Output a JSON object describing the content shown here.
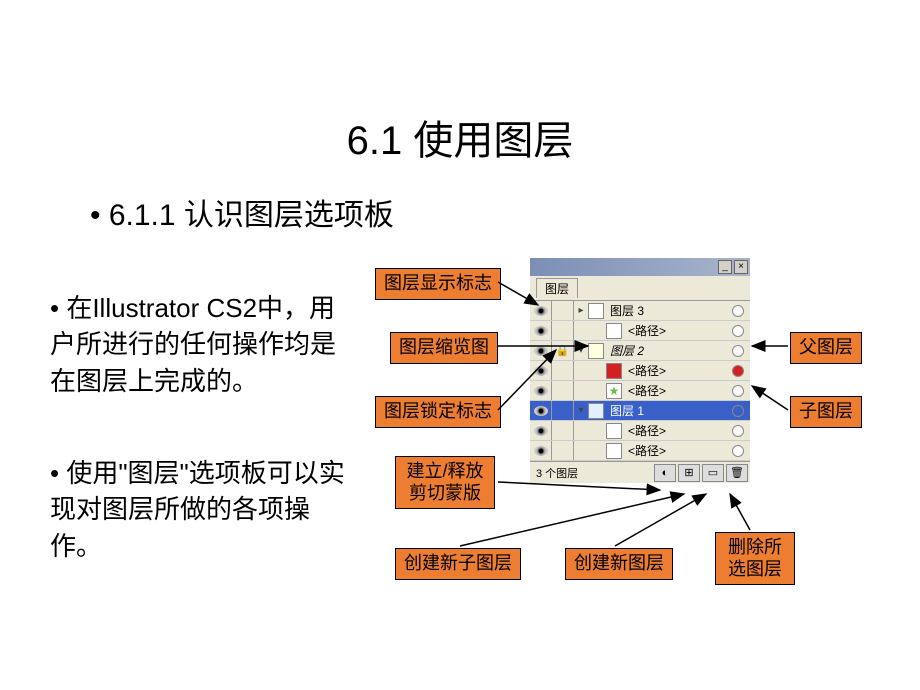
{
  "title": "6.1  使用图层",
  "subtitle": "• 6.1.1   认识图层选项板",
  "body1": "• 在Illustrator CS2中，用户所进行的任何操作均是在图层上完成的。",
  "body2": "• 使用\"图层\"选项板可以实现对图层所做的各项操作。",
  "panel": {
    "tab": "图层",
    "footer_count": "3 个图层",
    "rows": [
      {
        "name": "图层 3",
        "thumb_color": "#ffffff",
        "indent": 0,
        "selected": false,
        "target_fill": "#ffffff",
        "expand": "▸"
      },
      {
        "name": "<路径>",
        "thumb_color": "#ffffff",
        "indent": 1,
        "selected": false,
        "target_fill": "#ffffff",
        "expand": ""
      },
      {
        "name": "图层 2",
        "thumb_color": "#ffffe0",
        "indent": 0,
        "selected": false,
        "target_fill": "#ffffff",
        "expand": "▾",
        "locked": true,
        "italic": true
      },
      {
        "name": "<路径>",
        "thumb_color": "#d42020",
        "indent": 1,
        "selected": false,
        "target_fill": "#d42020",
        "expand": ""
      },
      {
        "name": "<路径>",
        "thumb_color": "#6abd45",
        "indent": 1,
        "selected": false,
        "target_fill": "#ffffff",
        "expand": "",
        "star": true
      },
      {
        "name": "图层 1",
        "thumb_color": "#e0f0ff",
        "indent": 0,
        "selected": true,
        "target_fill": "#3860c8",
        "expand": "▾"
      },
      {
        "name": "<路径>",
        "thumb_color": "#ffffff",
        "indent": 1,
        "selected": false,
        "target_fill": "#ffffff",
        "expand": ""
      },
      {
        "name": "<路径>",
        "thumb_color": "#ffffff",
        "indent": 1,
        "selected": false,
        "target_fill": "#ffffff",
        "expand": ""
      }
    ]
  },
  "annotations": {
    "vis_marker": "图层显示标志",
    "thumbnail": "图层缩览图",
    "lock_marker": "图层锁定标志",
    "clip_mask": "建立/释放 剪切蒙版",
    "new_sublayer": "创建新子图层",
    "new_layer": "创建新图层",
    "delete_layer": "删除所选图层",
    "parent_layer": "父图层",
    "child_layer": "子图层"
  },
  "colors": {
    "annot_bg": "#ed7d31",
    "selected_row_bg": "#3860c8",
    "selected_row_text": "#ffffff"
  }
}
